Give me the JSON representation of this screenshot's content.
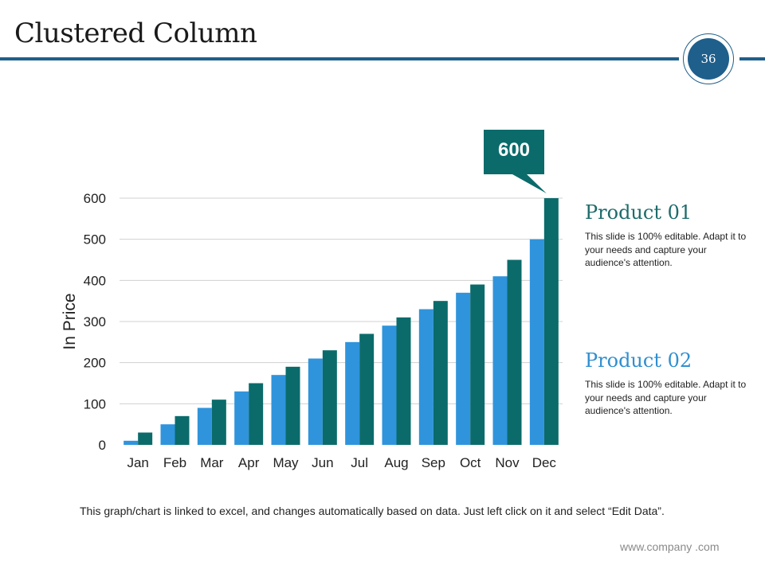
{
  "slide": {
    "title": "Clustered Column",
    "page_number": "36",
    "footnote": "This graph/chart is linked to excel, and changes automatically based on data. Just left click on it and select “Edit Data”.",
    "website": "www.company .com"
  },
  "products": [
    {
      "title": "Product 01",
      "description": "This slide is 100% editable. Adapt it to your needs and capture your audience's attention.",
      "color": "#1d6b6b"
    },
    {
      "title": "Product 02",
      "description": "This slide is 100% editable. Adapt it to your needs and capture your audience's attention.",
      "color": "#2f8fd0"
    }
  ],
  "chart_data": {
    "type": "bar",
    "title": "",
    "xlabel": "",
    "ylabel": "In Price",
    "ylim": [
      0,
      600
    ],
    "yticks": [
      0,
      100,
      200,
      300,
      400,
      500,
      600
    ],
    "categories": [
      "Jan",
      "Feb",
      "Mar",
      "Apr",
      "May",
      "Jun",
      "Jul",
      "Aug",
      "Sep",
      "Oct",
      "Nov",
      "Dec"
    ],
    "series": [
      {
        "name": "Product 01",
        "color": "#2f94dc",
        "values": [
          10,
          50,
          90,
          130,
          170,
          210,
          250,
          290,
          330,
          370,
          410,
          500
        ]
      },
      {
        "name": "Product 02",
        "color": "#0b6b6b",
        "values": [
          30,
          70,
          110,
          150,
          190,
          230,
          270,
          310,
          350,
          390,
          450,
          600
        ]
      }
    ],
    "grid": true,
    "callout": {
      "label": "600",
      "category": "Dec",
      "series": "Product 02",
      "color": "#0b6b6b"
    }
  }
}
